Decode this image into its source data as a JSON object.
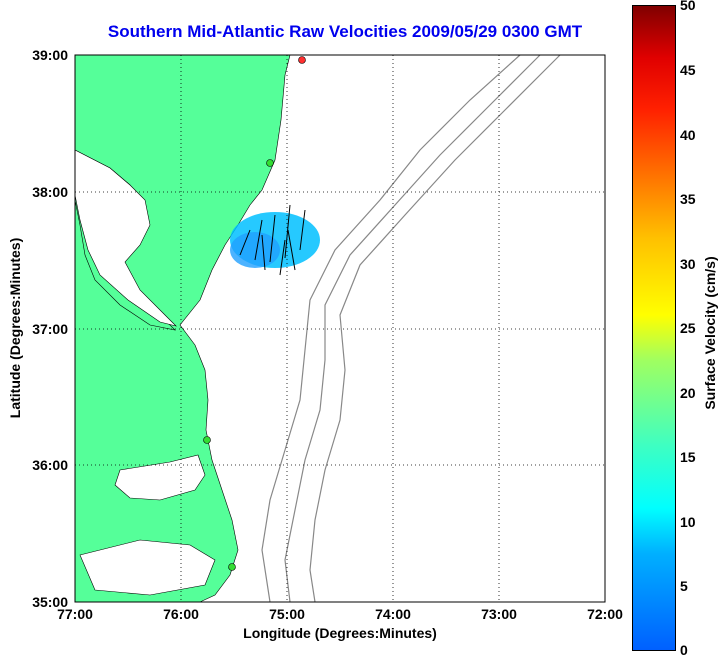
{
  "title": "Southern Mid-Atlantic Raw Velocities 2009/05/29 0300 GMT",
  "xlabel": "Longitude (Degrees:Minutes)",
  "ylabel": "Latitude (Degrees:Minutes)",
  "x_ticks": [
    "77:00",
    "76:00",
    "75:00",
    "74:00",
    "73:00",
    "72:00"
  ],
  "y_ticks": [
    "39:00",
    "38:00",
    "37:00",
    "36:00",
    "35:00"
  ],
  "colorbar": {
    "label": "Surface Velocity (cm/s)",
    "ticks": [
      "50",
      "45",
      "40",
      "35",
      "30",
      "25",
      "20",
      "15",
      "10",
      "5",
      "0"
    ]
  },
  "colors": {
    "land": "#55ff99",
    "title": "#0000ee",
    "contour": "#888888",
    "grid": "#000000"
  }
}
